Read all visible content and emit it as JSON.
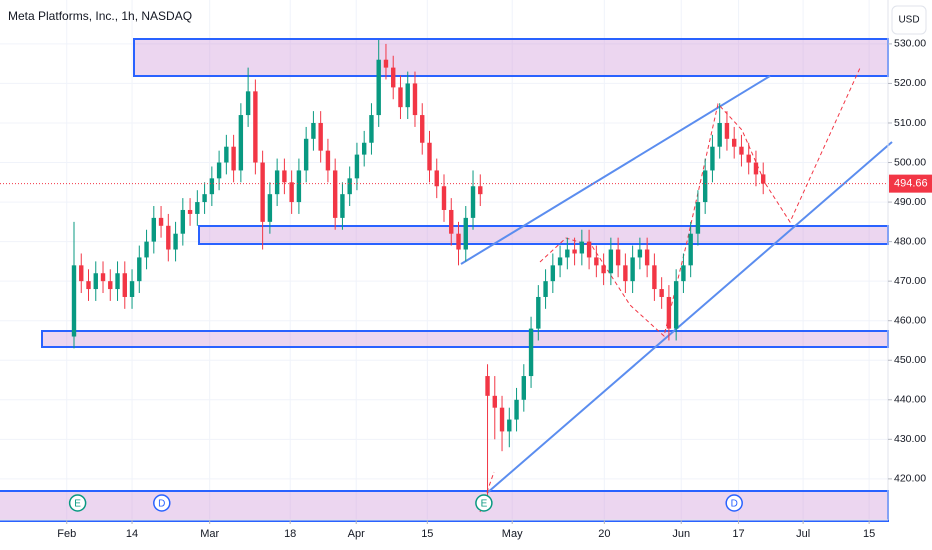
{
  "chart_data": {
    "type": "candlestick",
    "title": "Meta Platforms, Inc., 1h, NASDAQ",
    "currency": "USD",
    "last_price": 494.66,
    "last_price_color": "#f23645",
    "up_color": "#089981",
    "down_color": "#f23645",
    "xlim": [
      -9.2,
      113.2
    ],
    "ylim": [
      409.6,
      541.1
    ],
    "xticks": [
      {
        "value": 0,
        "label": "Feb"
      },
      {
        "value": 9,
        "label": "14"
      },
      {
        "value": 19.7,
        "label": "Mar"
      },
      {
        "value": 30.8,
        "label": "18"
      },
      {
        "value": 39.9,
        "label": "Apr"
      },
      {
        "value": 49.7,
        "label": "15"
      },
      {
        "value": 61.4,
        "label": "May"
      },
      {
        "value": 74.1,
        "label": "20"
      },
      {
        "value": 84.7,
        "label": "Jun"
      },
      {
        "value": 92.6,
        "label": "17"
      },
      {
        "value": 101.5,
        "label": "Jul"
      },
      {
        "value": 110.6,
        "label": "15"
      }
    ],
    "yticks": [
      {
        "value": 420,
        "label": "420.00"
      },
      {
        "value": 430,
        "label": "430.00"
      },
      {
        "value": 440,
        "label": "440.00"
      },
      {
        "value": 450,
        "label": "450.00"
      },
      {
        "value": 460,
        "label": "460.00"
      },
      {
        "value": 470,
        "label": "470.00"
      },
      {
        "value": 480,
        "label": "480.00"
      },
      {
        "value": 490,
        "label": "490.00"
      },
      {
        "value": 500,
        "label": "500.00"
      },
      {
        "value": 510,
        "label": "510.00"
      },
      {
        "value": 520,
        "label": "520.00"
      },
      {
        "value": 530,
        "label": "530.00"
      }
    ],
    "events": [
      {
        "label": "E",
        "x": 1.5,
        "color": "#089981"
      },
      {
        "label": "D",
        "x": 13.1,
        "color": "#2962ff"
      },
      {
        "label": "E",
        "x": 57.5,
        "color": "#089981"
      },
      {
        "label": "D",
        "x": 92,
        "color": "#2962ff"
      }
    ],
    "x": [
      1,
      2,
      3,
      4,
      5,
      6,
      7,
      8,
      9,
      10,
      11,
      12,
      13,
      14,
      15,
      16,
      17,
      18,
      19,
      20,
      21,
      22,
      23,
      24,
      25,
      26,
      27,
      28,
      29,
      30,
      31,
      32,
      33,
      34,
      35,
      36,
      37,
      38,
      39,
      40,
      41,
      42,
      43,
      44,
      45,
      46,
      47,
      48,
      49,
      50,
      51,
      52,
      53,
      54,
      55,
      56,
      57,
      58,
      59,
      60,
      61,
      62,
      63,
      64,
      65,
      66,
      67,
      68,
      69,
      70,
      71,
      72,
      73,
      74,
      75,
      76,
      77,
      78,
      79,
      80,
      81,
      82,
      83,
      84,
      85,
      86,
      87,
      88,
      89,
      90,
      91,
      92,
      93,
      94,
      95,
      96
    ],
    "open": [
      456,
      474,
      470,
      468,
      472,
      470,
      468,
      472,
      466,
      470,
      476,
      480,
      486,
      484,
      478,
      482,
      488,
      487,
      490,
      492,
      496,
      500,
      504,
      498,
      512,
      518,
      500,
      485,
      492,
      498,
      495,
      490,
      498,
      506,
      510,
      503,
      498,
      486,
      492,
      496,
      502,
      505,
      512,
      526,
      524,
      519,
      514,
      520,
      512,
      505,
      498,
      494,
      488,
      482,
      478,
      486,
      494,
      446,
      441,
      438,
      432,
      435,
      440,
      446,
      458,
      466,
      470,
      474,
      476,
      478,
      477,
      480,
      476,
      474,
      472,
      478,
      474,
      470,
      476,
      478,
      474,
      468,
      466,
      458,
      470,
      474,
      482,
      490,
      498,
      504,
      510,
      506,
      504,
      502,
      500,
      497
    ],
    "high": [
      485,
      477,
      473,
      475,
      475,
      473,
      475,
      475,
      473,
      479,
      483,
      489,
      489,
      487,
      485,
      491,
      491,
      493,
      495,
      499,
      503,
      507,
      507,
      515,
      524,
      521,
      503,
      495,
      501,
      501,
      498,
      501,
      509,
      513,
      513,
      506,
      501,
      495,
      499,
      505,
      508,
      515,
      531,
      530,
      527,
      522,
      523,
      523,
      515,
      508,
      501,
      497,
      491,
      485,
      489,
      498,
      497,
      449,
      446,
      441,
      438,
      443,
      449,
      461,
      469,
      473,
      477,
      479,
      481,
      481,
      483,
      483,
      479,
      477,
      481,
      481,
      477,
      479,
      481,
      481,
      477,
      471,
      469,
      473,
      477,
      485,
      493,
      501,
      507,
      515,
      513,
      509,
      507,
      505,
      503,
      500
    ],
    "low": [
      453,
      467,
      465,
      465,
      467,
      465,
      465,
      463,
      463,
      467,
      473,
      477,
      481,
      475,
      475,
      479,
      484,
      484,
      487,
      489,
      493,
      497,
      495,
      495,
      509,
      497,
      478,
      482,
      489,
      492,
      487,
      487,
      495,
      503,
      500,
      495,
      483,
      483,
      489,
      493,
      499,
      502,
      509,
      521,
      516,
      511,
      511,
      509,
      502,
      495,
      491,
      485,
      479,
      474,
      475,
      483,
      489,
      415,
      430,
      427,
      428,
      432,
      437,
      443,
      455,
      463,
      467,
      471,
      473,
      474,
      474,
      473,
      471,
      469,
      469,
      471,
      467,
      467,
      473,
      471,
      465,
      463,
      455,
      455,
      467,
      471,
      479,
      487,
      495,
      501,
      503,
      501,
      499,
      497,
      494,
      492
    ],
    "close": [
      474,
      470,
      468,
      472,
      470,
      468,
      472,
      466,
      470,
      476,
      480,
      486,
      484,
      478,
      482,
      488,
      487,
      490,
      492,
      496,
      500,
      504,
      498,
      512,
      518,
      500,
      485,
      492,
      498,
      495,
      490,
      498,
      506,
      510,
      503,
      498,
      486,
      492,
      496,
      502,
      505,
      512,
      526,
      524,
      519,
      514,
      520,
      512,
      505,
      498,
      494,
      488,
      482,
      478,
      486,
      494,
      492,
      441,
      438,
      432,
      435,
      440,
      446,
      458,
      466,
      470,
      474,
      476,
      478,
      477,
      480,
      476,
      474,
      472,
      478,
      474,
      470,
      476,
      478,
      474,
      468,
      466,
      458,
      470,
      474,
      482,
      490,
      498,
      504,
      510,
      506,
      504,
      502,
      500,
      497,
      494.66
    ]
  }
}
